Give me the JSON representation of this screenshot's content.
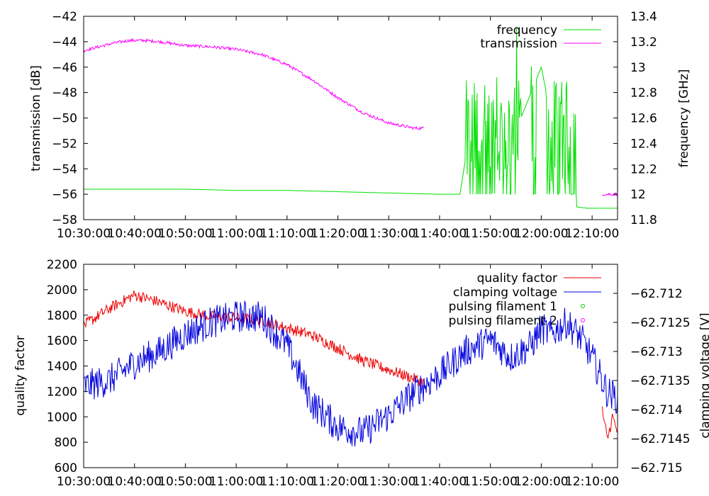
{
  "colors": {
    "frequency": "#00e000",
    "transmission": "#ff00ff",
    "quality_factor": "#ee0000",
    "clamping_voltage": "#0000dd",
    "pulsing_filament_1": "#00cc00",
    "pulsing_filament_2": "#ff00ff"
  },
  "chart_data": [
    {
      "type": "line",
      "title": "",
      "xlabel": "",
      "ylabel": "transmission [dB]",
      "y2label": "frequency [GHz]",
      "xlim": [
        "10:30:00",
        "12:15:00"
      ],
      "ylim": [
        -58,
        -42
      ],
      "y2lim": [
        11.8,
        13.4
      ],
      "x_tick_labels": [
        "10:30:00",
        "10:40:00",
        "10:50:00",
        "11:00:00",
        "11:10:00",
        "11:20:00",
        "11:30:00",
        "11:40:00",
        "11:50:00",
        "12:00:00",
        "12:10:00"
      ],
      "y_tick_labels": [
        "-42",
        "-44",
        "-46",
        "-48",
        "-50",
        "-52",
        "-54",
        "-56",
        "-58"
      ],
      "y2_tick_labels": [
        "13.4",
        "13.2",
        "13",
        "12.8",
        "12.6",
        "12.4",
        "12.2",
        "12",
        "11.8"
      ],
      "legend_position": "top-right",
      "series": [
        {
          "name": "frequency",
          "axis": "y2",
          "x": [
            "10:30",
            "10:40",
            "10:50",
            "11:00",
            "11:10",
            "11:20",
            "11:30",
            "11:40",
            "11:44",
            "11:46",
            "11:50",
            "11:55",
            "12:00",
            "12:02",
            "12:05",
            "12:06",
            "12:07",
            "12:09",
            "12:12",
            "12:15"
          ],
          "values": [
            12.04,
            12.04,
            12.04,
            12.03,
            12.03,
            12.02,
            12.01,
            12.0,
            12.0,
            12.5,
            12.9,
            12.5,
            13.0,
            12.6,
            12.4,
            12.7,
            11.9,
            11.89,
            11.89,
            11.89
          ]
        },
        {
          "name": "transmission",
          "axis": "y",
          "x": [
            "10:30",
            "10:33",
            "10:36",
            "10:39",
            "10:42",
            "10:45",
            "10:50",
            "10:55",
            "11:00",
            "11:05",
            "11:10",
            "11:15",
            "11:20",
            "11:25",
            "11:30",
            "11:35",
            "11:37",
            "12:12",
            "12:15"
          ],
          "values": [
            -44.7,
            -44.4,
            -44.1,
            -43.9,
            -43.9,
            -44.0,
            -44.3,
            -44.4,
            -44.6,
            -45.0,
            -45.8,
            -47.0,
            -48.4,
            -49.6,
            -50.4,
            -50.8,
            -50.8,
            -56.0,
            -56.0
          ]
        }
      ]
    },
    {
      "type": "line",
      "title": "",
      "xlabel": "",
      "ylabel": "quality factor",
      "y2label": "clamping voltage [V]",
      "xlim": [
        "10:30:00",
        "12:15:00"
      ],
      "ylim": [
        600,
        2200
      ],
      "y2lim": [
        -62.715,
        -62.7115
      ],
      "x_tick_labels": [
        "10:30:00",
        "10:40:00",
        "10:50:00",
        "11:00:00",
        "11:10:00",
        "11:20:00",
        "11:30:00",
        "11:40:00",
        "11:50:00",
        "12:00:00",
        "12:10:00"
      ],
      "y_tick_labels": [
        "2200",
        "2000",
        "1800",
        "1600",
        "1400",
        "1200",
        "1000",
        "800",
        "600"
      ],
      "y2_tick_labels": [
        "-62.712",
        "-62.7125",
        "-62.713",
        "-62.7135",
        "-62.714",
        "-62.7145",
        "-62.715"
      ],
      "legend_position": "top-right",
      "series": [
        {
          "name": "quality factor",
          "axis": "y",
          "x": [
            "10:30",
            "10:35",
            "10:40",
            "10:45",
            "10:50",
            "10:55",
            "11:00",
            "11:05",
            "11:10",
            "11:15",
            "11:20",
            "11:25",
            "11:30",
            "11:35",
            "11:37",
            "12:12",
            "12:13",
            "12:14",
            "12:15"
          ],
          "values": [
            1720,
            1850,
            1960,
            1900,
            1830,
            1790,
            1780,
            1760,
            1700,
            1640,
            1540,
            1440,
            1370,
            1300,
            1270,
            1050,
            820,
            1000,
            880
          ]
        },
        {
          "name": "clamping voltage",
          "axis": "y2",
          "x": [
            "10:30",
            "10:35",
            "10:40",
            "10:45",
            "10:50",
            "10:55",
            "11:00",
            "11:05",
            "11:10",
            "11:15",
            "11:20",
            "11:25",
            "11:30",
            "11:35",
            "11:40",
            "11:45",
            "11:50",
            "11:54",
            "11:58",
            "12:00",
            "12:02",
            "12:05",
            "12:08",
            "12:10",
            "12:13",
            "12:15"
          ],
          "values": [
            -62.7136,
            -62.7135,
            -62.7132,
            -62.713,
            -62.7127,
            -62.7125,
            -62.7124,
            -62.7124,
            -62.7129,
            -62.7139,
            -62.7143,
            -62.7144,
            -62.7141,
            -62.7137,
            -62.7134,
            -62.713,
            -62.7128,
            -62.7131,
            -62.7129,
            -62.7126,
            -62.7127,
            -62.7125,
            -62.7128,
            -62.7131,
            -62.7137,
            -62.7138
          ]
        },
        {
          "name": "pulsing filament 1",
          "axis": "y2",
          "x": [],
          "values": []
        },
        {
          "name": "pulsing filament 2",
          "axis": "y2",
          "x": [],
          "values": []
        }
      ]
    }
  ]
}
